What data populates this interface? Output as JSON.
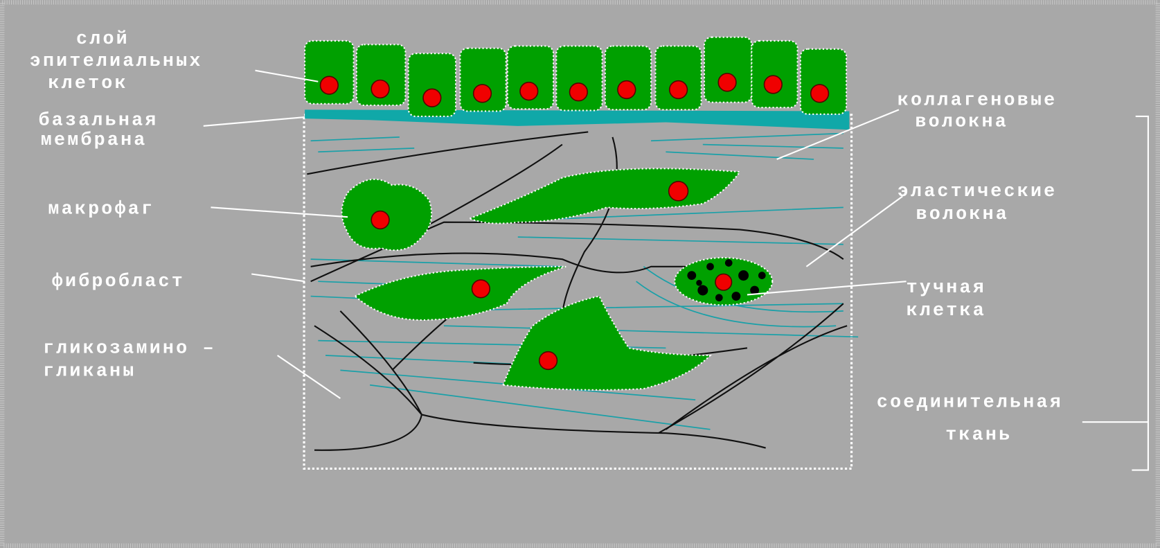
{
  "labels": [
    {
      "lines": [
        "слой",
        "эпителиальных",
        "клеток"
      ]
    },
    {
      "lines": [
        "базальная",
        "мембрана"
      ]
    },
    {
      "lines": [
        "макрофаг"
      ]
    },
    {
      "lines": [
        "фибробласт"
      ]
    },
    {
      "lines": [
        "гликозамино –",
        "гликаны"
      ]
    },
    {
      "lines": [
        "коллагеновые",
        "волокна"
      ]
    },
    {
      "lines": [
        "эластические",
        "волокна"
      ]
    },
    {
      "lines": [
        "тучная",
        "клетка"
      ]
    },
    {
      "lines": [
        "соединительная",
        "ткань"
      ]
    }
  ]
}
